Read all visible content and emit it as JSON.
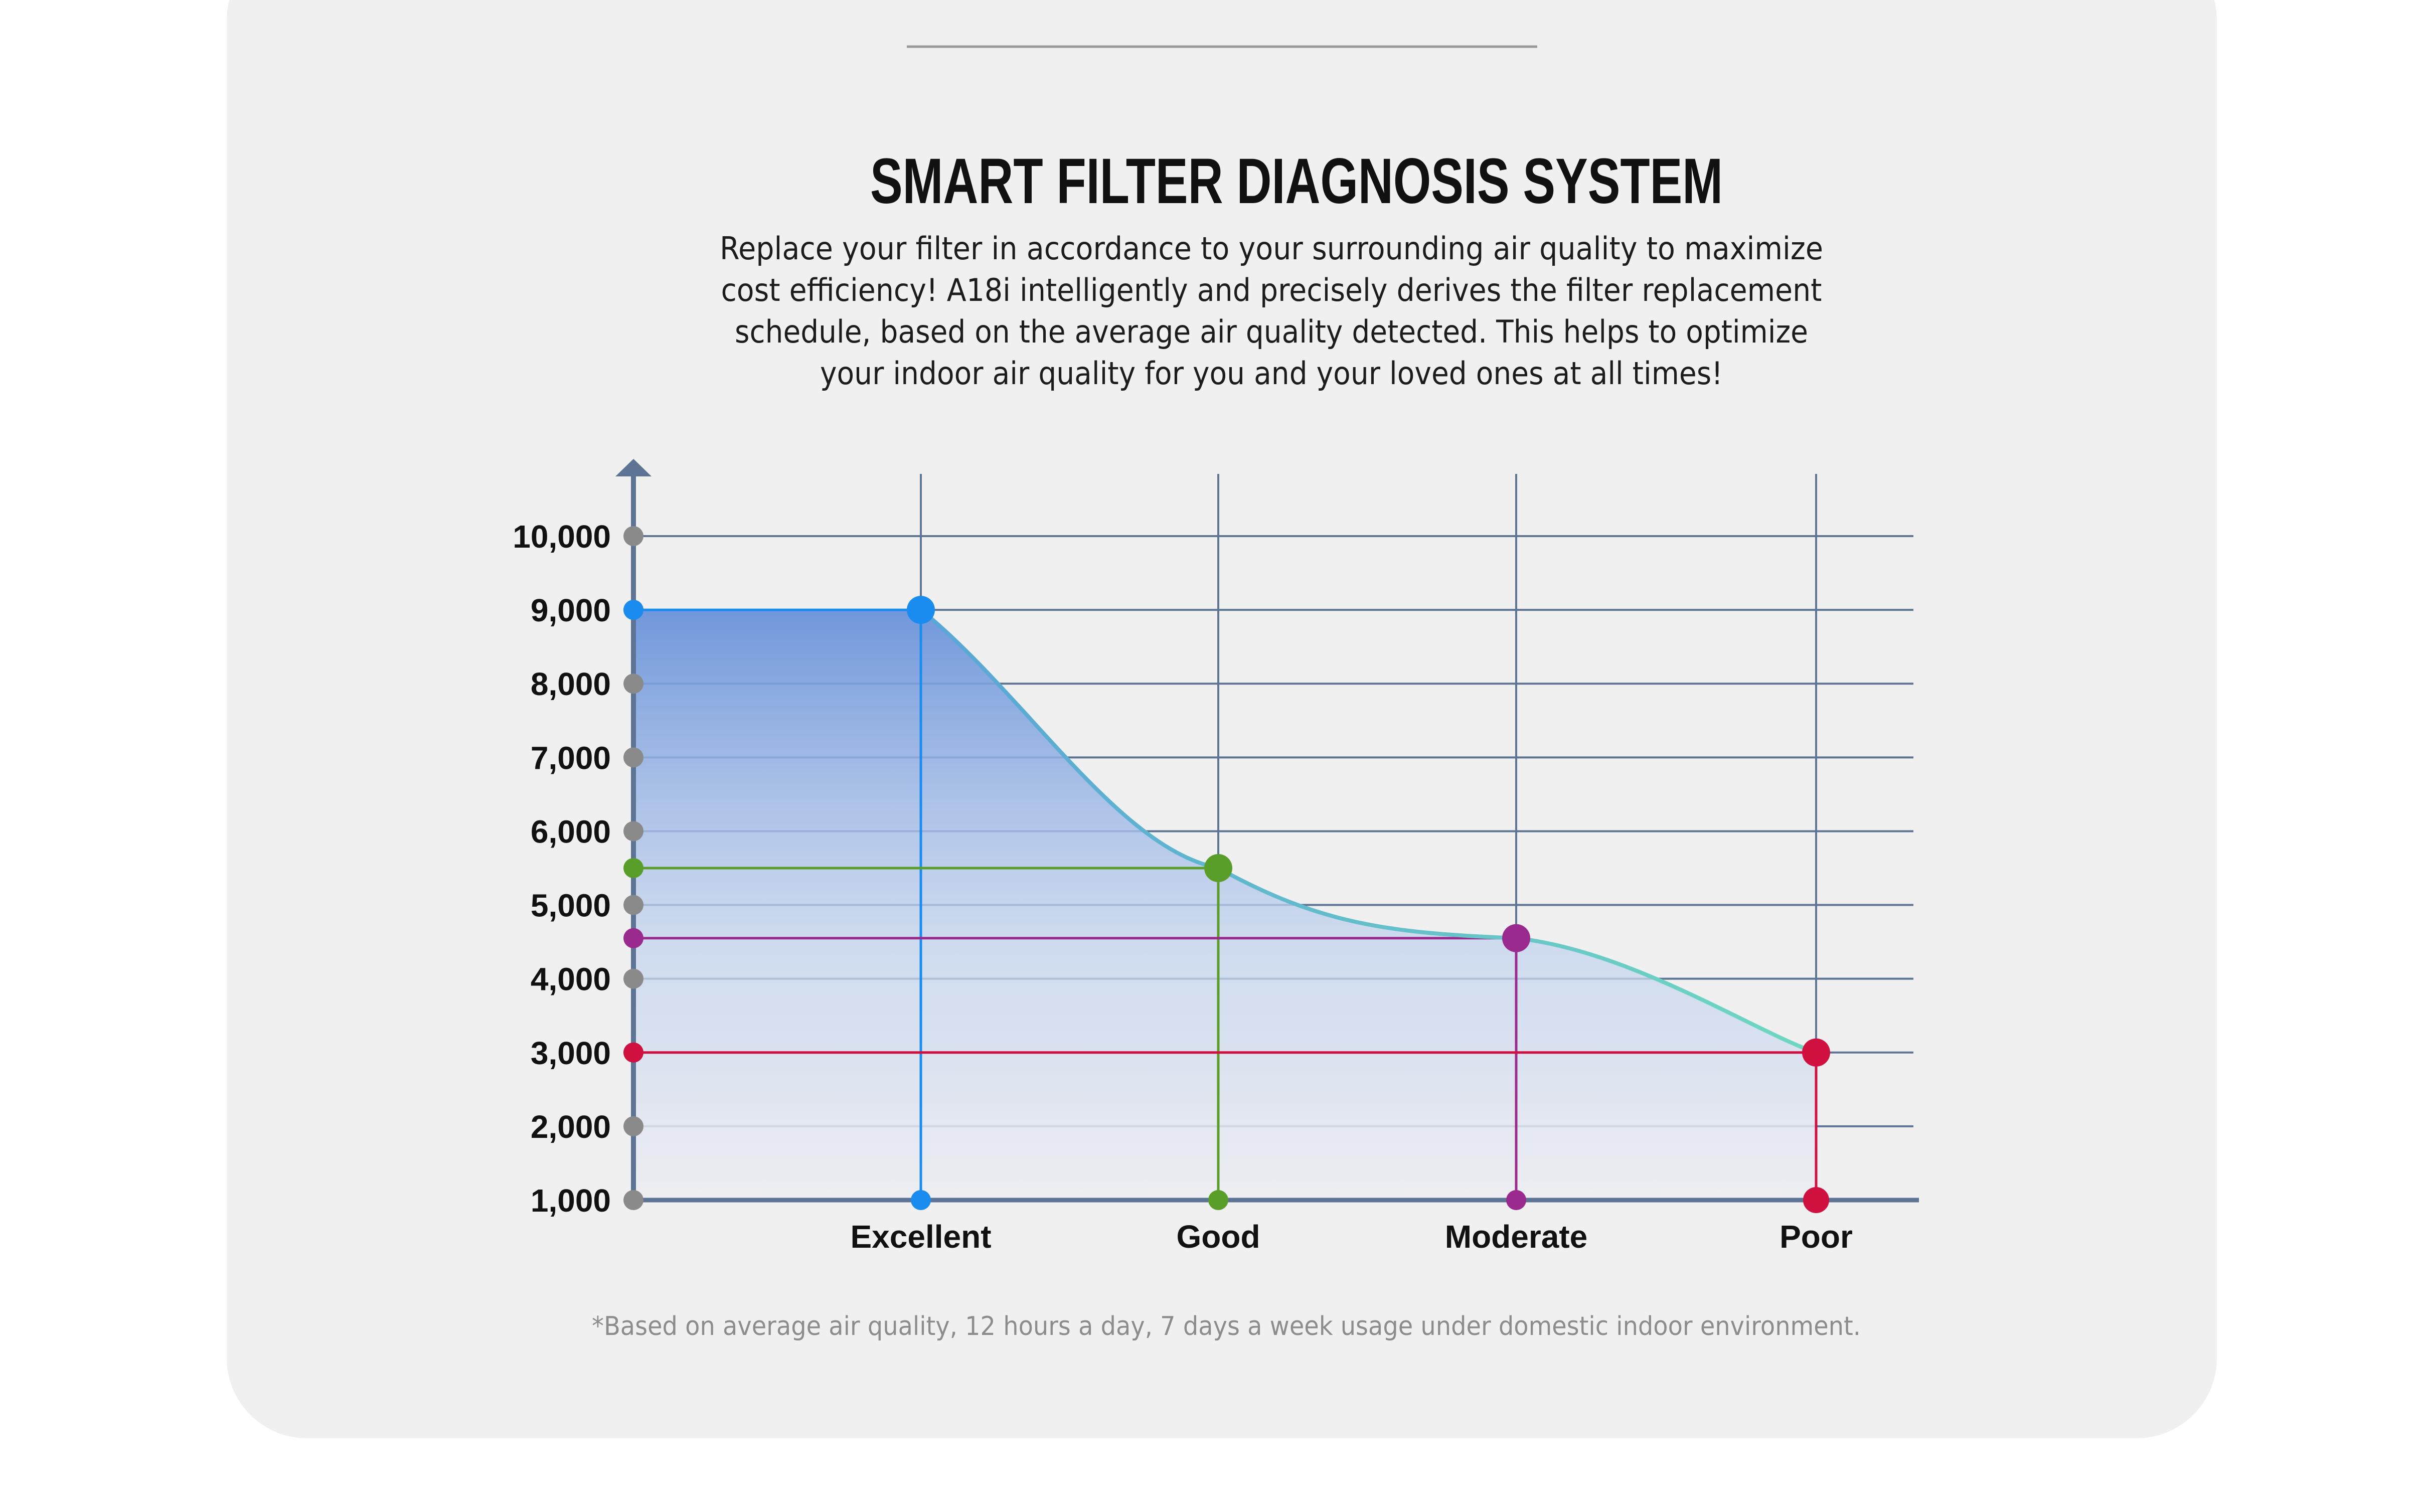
{
  "header": {
    "title": "SMART FILTER DIAGNOSIS SYSTEM",
    "description_lines": [
      "Replace your filter in accordance to your surrounding air quality to maximize",
      "cost efficiency! A18i intelligently and precisely derives the filter replacement",
      "schedule, based on the average air quality detected. This helps to optimize",
      "your indoor air quality for you and your loved ones at all times!"
    ]
  },
  "footnote": "*Based on average air quality, 12 hours a day, 7 days a week usage under domestic indoor environment.",
  "colors": {
    "card_background": "#f0f0f0",
    "grid_line": "#5d7494",
    "axis": "#5d7494",
    "tick_dot": "#8a8a8a",
    "area_top": "#6a93da",
    "area_bottom": "#eeeef2",
    "curve_start": "#58a6d6",
    "curve_end": "#6fd8c0"
  },
  "chart_data": {
    "type": "area",
    "title": "",
    "xlabel": "",
    "ylabel": "",
    "categories": [
      "Excellent",
      "Good",
      "Moderate",
      "Poor"
    ],
    "ylim": [
      1000,
      10000
    ],
    "yticks": [
      1000,
      2000,
      3000,
      4000,
      5000,
      6000,
      7000,
      8000,
      9000,
      10000
    ],
    "ytick_labels": [
      "1,000",
      "2,000",
      "3,000",
      "4,000",
      "5,000",
      "6,000",
      "7,000",
      "8,000",
      "9,000",
      "10,000"
    ],
    "grid": true,
    "points": [
      {
        "category": "Excellent",
        "value": 9000,
        "color": "#1a8cf0"
      },
      {
        "category": "Good",
        "value": 5500,
        "color": "#5a9e2a"
      },
      {
        "category": "Moderate",
        "value": 4550,
        "color": "#9b2a8f"
      },
      {
        "category": "Poor",
        "value": 3000,
        "color": "#d0103f"
      }
    ]
  }
}
